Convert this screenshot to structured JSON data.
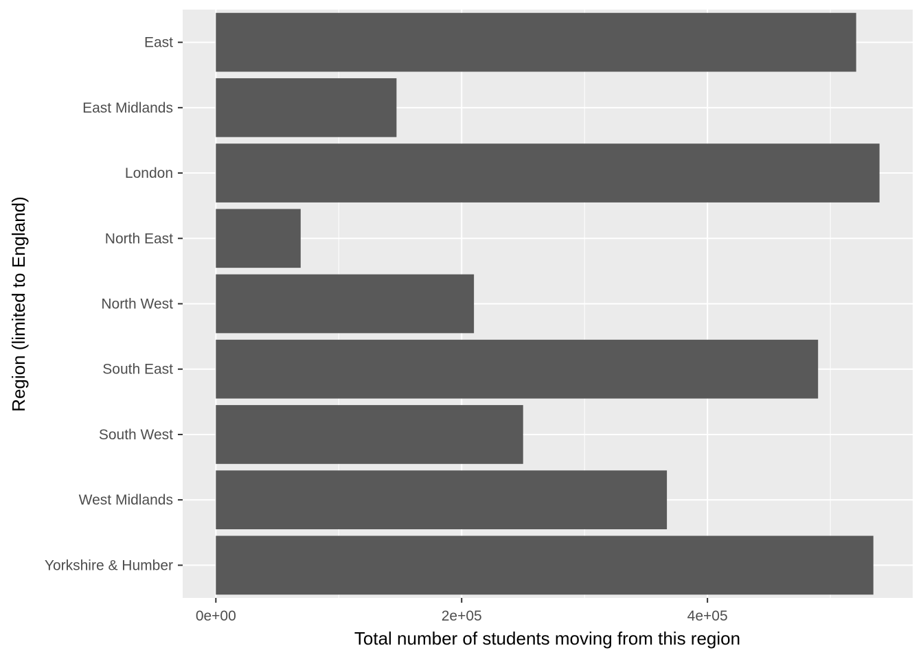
{
  "chart_data": {
    "type": "bar",
    "orientation": "horizontal",
    "categories": [
      "East",
      "East Midlands",
      "London",
      "North East",
      "North West",
      "South East",
      "South West",
      "West Midlands",
      "Yorkshire & Humber"
    ],
    "values": [
      521000,
      147000,
      540000,
      69000,
      210000,
      490000,
      250000,
      367000,
      535000
    ],
    "xlabel": "Total number of students moving from this region",
    "ylabel": "Region (limited to England)",
    "xlim": [
      -27000,
      567000
    ],
    "xticks": [
      {
        "value": 0,
        "label": "0e+00"
      },
      {
        "value": 200000,
        "label": "2e+05"
      },
      {
        "value": 400000,
        "label": "4e+05"
      }
    ],
    "minor_xticks": [
      100000,
      300000,
      500000
    ],
    "grid": true,
    "colors": {
      "bar": "#595959",
      "panel": "#ebebeb",
      "grid": "#ffffff"
    }
  }
}
